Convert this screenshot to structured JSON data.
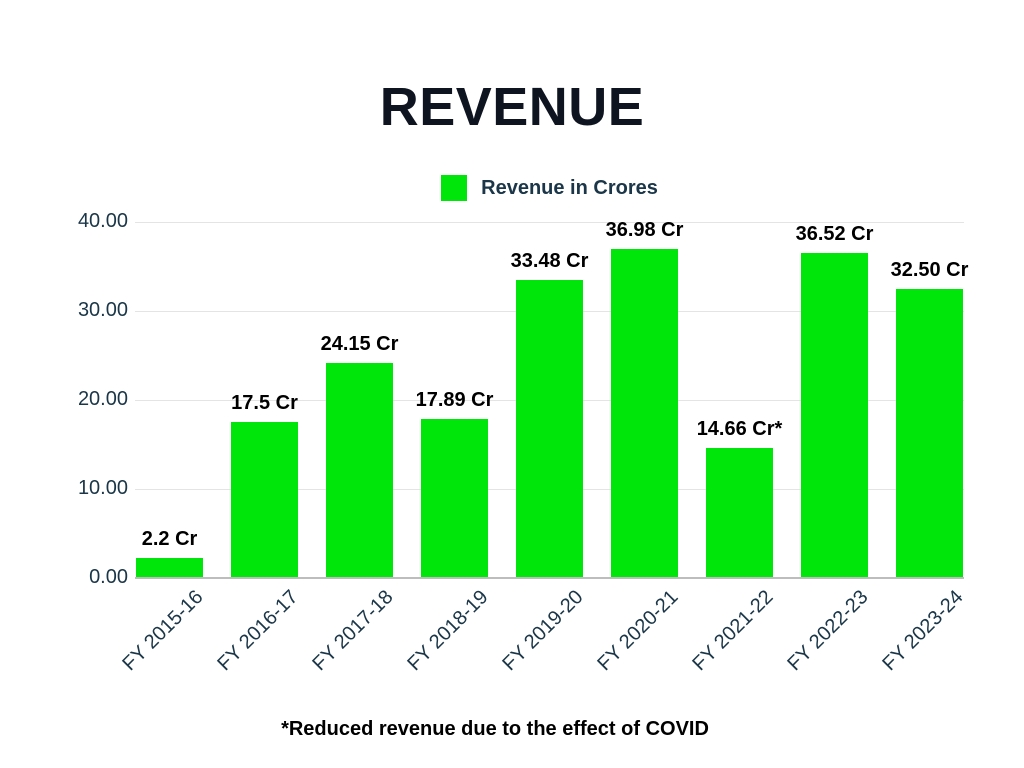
{
  "title": "REVENUE",
  "legend": {
    "label": "Revenue in Crores"
  },
  "footnote": "*Reduced revenue due to the effect of COVID",
  "colors": {
    "bar": "#00e60a",
    "axis_text": "#1a3648",
    "label_text": "#000000",
    "title_text": "#0e1420",
    "gridline": "#e4e4e4",
    "baseline": "#bdbdbd",
    "background": "#ffffff"
  },
  "chart_data": {
    "type": "bar",
    "title": "REVENUE",
    "categories": [
      "FY 2015-16",
      "FY 2016-17",
      "FY 2017-18",
      "FY 2018-19",
      "FY 2019-20",
      "FY 2020-21",
      "FY 2021-22",
      "FY 2022-23",
      "FY 2023-24"
    ],
    "values": [
      2.2,
      17.5,
      24.15,
      17.89,
      33.48,
      36.98,
      14.66,
      36.52,
      32.5
    ],
    "value_labels": [
      "2.2 Cr",
      "17.5 Cr",
      "24.15 Cr",
      "17.89 Cr",
      "33.48 Cr",
      "36.98 Cr",
      "14.66 Cr*",
      "36.52 Cr",
      "32.50 Cr"
    ],
    "xlabel": "",
    "ylabel": "",
    "ylim": [
      0,
      40
    ],
    "yticks": [
      0,
      10,
      20,
      30,
      40
    ],
    "ytick_labels": [
      "0.00",
      "10.00",
      "20.00",
      "30.00",
      "40.00"
    ],
    "grid": true,
    "legend_entries": [
      "Revenue in Crores"
    ],
    "legend_position": "top-center",
    "annotation": "*Reduced revenue due to the effect of COVID"
  }
}
